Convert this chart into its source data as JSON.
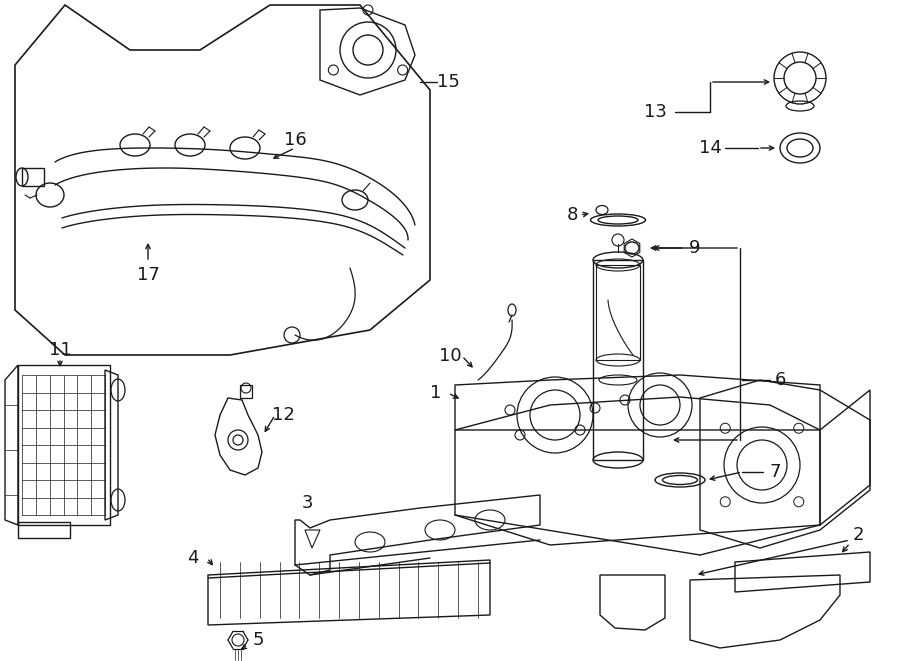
{
  "background_color": "#ffffff",
  "line_color": "#1a1a1a",
  "fig_width": 9.0,
  "fig_height": 6.61,
  "dpi": 100,
  "label_fontsize": 13,
  "label_fontweight": "normal"
}
